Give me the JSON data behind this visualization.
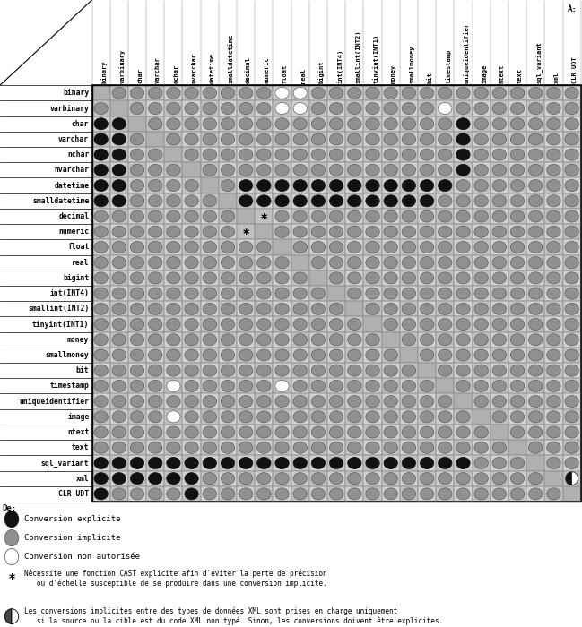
{
  "title_to": "À:",
  "title_from": "De:",
  "col_labels": [
    "binary",
    "varbinary",
    "char",
    "varchar",
    "nchar",
    "nvarchar",
    "datetime",
    "smalldatetime",
    "decimal",
    "numeric",
    "float",
    "real",
    "bigint",
    "int(INT4)",
    "smallint(INT2)",
    "tinyint(INT1)",
    "money",
    "smallmoney",
    "bit",
    "timestamp",
    "uniqueidentifier",
    "image",
    "ntext",
    "text",
    "sql_variant",
    "xml",
    "CLR UDT"
  ],
  "row_labels": [
    "binary",
    "varbinary",
    "char",
    "varchar",
    "nchar",
    "nvarchar",
    "datetime",
    "smalldatetime",
    "decimal",
    "numeric",
    "float",
    "real",
    "bigint",
    "int(INT4)",
    "smallint(INT2)",
    "tinyint(INT1)",
    "money",
    "smallmoney",
    "bit",
    "timestamp",
    "uniqueidentifier",
    "image",
    "ntext",
    "text",
    "sql_variant",
    "xml",
    "CLR UDT"
  ],
  "matrix": [
    [
      "-",
      "G",
      "G",
      "G",
      "G",
      "G",
      "G",
      "G",
      "G",
      "G",
      "W",
      "W",
      "G",
      "G",
      "G",
      "G",
      "G",
      "G",
      "G",
      "G",
      "G",
      "G",
      "G",
      "G",
      "G",
      "G",
      "G"
    ],
    [
      "G",
      "-",
      "G",
      "G",
      "G",
      "G",
      "G",
      "G",
      "G",
      "G",
      "W",
      "W",
      "G",
      "G",
      "G",
      "G",
      "G",
      "G",
      "G",
      "W",
      "G",
      "G",
      "G",
      "G",
      "G",
      "G",
      "G"
    ],
    [
      "B",
      "B",
      "-",
      "G",
      "G",
      "G",
      "G",
      "G",
      "G",
      "G",
      "G",
      "G",
      "G",
      "G",
      "G",
      "G",
      "G",
      "G",
      "G",
      "G",
      "B",
      "G",
      "G",
      "G",
      "G",
      "G",
      "G"
    ],
    [
      "B",
      "B",
      "G",
      "-",
      "G",
      "G",
      "G",
      "G",
      "G",
      "G",
      "G",
      "G",
      "G",
      "G",
      "G",
      "G",
      "G",
      "G",
      "G",
      "G",
      "B",
      "G",
      "G",
      "G",
      "G",
      "G",
      "G"
    ],
    [
      "B",
      "B",
      "G",
      "G",
      "-",
      "G",
      "G",
      "G",
      "G",
      "G",
      "G",
      "G",
      "G",
      "G",
      "G",
      "G",
      "G",
      "G",
      "G",
      "G",
      "B",
      "G",
      "G",
      "G",
      "G",
      "G",
      "G"
    ],
    [
      "B",
      "B",
      "G",
      "G",
      "G",
      "-",
      "G",
      "G",
      "G",
      "G",
      "G",
      "G",
      "G",
      "G",
      "G",
      "G",
      "G",
      "G",
      "G",
      "G",
      "B",
      "G",
      "G",
      "G",
      "G",
      "G",
      "G"
    ],
    [
      "B",
      "B",
      "G",
      "G",
      "G",
      "G",
      "-",
      "G",
      "B",
      "B",
      "B",
      "B",
      "B",
      "B",
      "B",
      "B",
      "B",
      "B",
      "B",
      "B",
      "G",
      "G",
      "G",
      "G",
      "G",
      "G",
      "G"
    ],
    [
      "B",
      "B",
      "G",
      "G",
      "G",
      "G",
      "G",
      "-",
      "B",
      "B",
      "B",
      "B",
      "B",
      "B",
      "B",
      "B",
      "B",
      "B",
      "B",
      "G",
      "G",
      "G",
      "G",
      "G",
      "G",
      "G",
      "G"
    ],
    [
      "G",
      "G",
      "G",
      "G",
      "G",
      "G",
      "G",
      "G",
      "-",
      "T",
      "G",
      "G",
      "G",
      "G",
      "G",
      "G",
      "G",
      "G",
      "G",
      "G",
      "G",
      "G",
      "G",
      "G",
      "G",
      "G",
      "G"
    ],
    [
      "G",
      "G",
      "G",
      "G",
      "G",
      "G",
      "G",
      "G",
      "T",
      "-",
      "G",
      "G",
      "G",
      "G",
      "G",
      "G",
      "G",
      "G",
      "G",
      "G",
      "G",
      "G",
      "G",
      "G",
      "G",
      "G",
      "G"
    ],
    [
      "G",
      "G",
      "G",
      "G",
      "G",
      "G",
      "G",
      "G",
      "G",
      "G",
      "-",
      "G",
      "G",
      "G",
      "G",
      "G",
      "G",
      "G",
      "G",
      "G",
      "G",
      "G",
      "G",
      "G",
      "G",
      "G",
      "G"
    ],
    [
      "G",
      "G",
      "G",
      "G",
      "G",
      "G",
      "G",
      "G",
      "G",
      "G",
      "G",
      "-",
      "G",
      "G",
      "G",
      "G",
      "G",
      "G",
      "G",
      "G",
      "G",
      "G",
      "G",
      "G",
      "G",
      "G",
      "G"
    ],
    [
      "G",
      "G",
      "G",
      "G",
      "G",
      "G",
      "G",
      "G",
      "G",
      "G",
      "G",
      "G",
      "-",
      "G",
      "G",
      "G",
      "G",
      "G",
      "G",
      "G",
      "G",
      "G",
      "G",
      "G",
      "G",
      "G",
      "G"
    ],
    [
      "G",
      "G",
      "G",
      "G",
      "G",
      "G",
      "G",
      "G",
      "G",
      "G",
      "G",
      "G",
      "G",
      "-",
      "G",
      "G",
      "G",
      "G",
      "G",
      "G",
      "G",
      "G",
      "G",
      "G",
      "G",
      "G",
      "G"
    ],
    [
      "G",
      "G",
      "G",
      "G",
      "G",
      "G",
      "G",
      "G",
      "G",
      "G",
      "G",
      "G",
      "G",
      "G",
      "-",
      "G",
      "G",
      "G",
      "G",
      "G",
      "G",
      "G",
      "G",
      "G",
      "G",
      "G",
      "G"
    ],
    [
      "G",
      "G",
      "G",
      "G",
      "G",
      "G",
      "G",
      "G",
      "G",
      "G",
      "G",
      "G",
      "G",
      "G",
      "G",
      "-",
      "G",
      "G",
      "G",
      "G",
      "G",
      "G",
      "G",
      "G",
      "G",
      "G",
      "G"
    ],
    [
      "G",
      "G",
      "G",
      "G",
      "G",
      "G",
      "G",
      "G",
      "G",
      "G",
      "G",
      "G",
      "G",
      "G",
      "G",
      "G",
      "-",
      "G",
      "G",
      "G",
      "G",
      "G",
      "G",
      "G",
      "G",
      "G",
      "G"
    ],
    [
      "G",
      "G",
      "G",
      "G",
      "G",
      "G",
      "G",
      "G",
      "G",
      "G",
      "G",
      "G",
      "G",
      "G",
      "G",
      "G",
      "G",
      "-",
      "G",
      "G",
      "G",
      "G",
      "G",
      "G",
      "G",
      "G",
      "G"
    ],
    [
      "G",
      "G",
      "G",
      "G",
      "G",
      "G",
      "G",
      "G",
      "G",
      "G",
      "G",
      "G",
      "G",
      "G",
      "G",
      "G",
      "G",
      "G",
      "-",
      "G",
      "G",
      "G",
      "G",
      "G",
      "G",
      "G",
      "G"
    ],
    [
      "G",
      "G",
      "G",
      "G",
      "W",
      "G",
      "G",
      "G",
      "G",
      "G",
      "W",
      "G",
      "G",
      "G",
      "G",
      "G",
      "G",
      "G",
      "G",
      "-",
      "G",
      "G",
      "G",
      "G",
      "G",
      "G",
      "G"
    ],
    [
      "G",
      "G",
      "G",
      "G",
      "G",
      "G",
      "G",
      "G",
      "G",
      "G",
      "G",
      "G",
      "G",
      "G",
      "G",
      "G",
      "G",
      "G",
      "G",
      "G",
      "-",
      "G",
      "G",
      "G",
      "G",
      "G",
      "G"
    ],
    [
      "G",
      "G",
      "G",
      "G",
      "W",
      "G",
      "G",
      "G",
      "G",
      "G",
      "G",
      "G",
      "G",
      "G",
      "G",
      "G",
      "G",
      "G",
      "G",
      "G",
      "G",
      "-",
      "G",
      "G",
      "G",
      "G",
      "G"
    ],
    [
      "G",
      "G",
      "G",
      "G",
      "G",
      "G",
      "G",
      "G",
      "G",
      "G",
      "G",
      "G",
      "G",
      "G",
      "G",
      "G",
      "G",
      "G",
      "G",
      "G",
      "G",
      "G",
      "-",
      "G",
      "G",
      "G",
      "G"
    ],
    [
      "G",
      "G",
      "G",
      "G",
      "G",
      "G",
      "G",
      "G",
      "G",
      "G",
      "G",
      "G",
      "G",
      "G",
      "G",
      "G",
      "G",
      "G",
      "G",
      "G",
      "G",
      "G",
      "G",
      "-",
      "G",
      "G",
      "G"
    ],
    [
      "B",
      "B",
      "B",
      "B",
      "B",
      "B",
      "B",
      "B",
      "B",
      "B",
      "B",
      "B",
      "B",
      "B",
      "B",
      "B",
      "B",
      "B",
      "B",
      "B",
      "B",
      "G",
      "G",
      "G",
      "-",
      "G",
      "G"
    ],
    [
      "B",
      "B",
      "B",
      "B",
      "B",
      "B",
      "G",
      "G",
      "G",
      "G",
      "G",
      "G",
      "G",
      "G",
      "G",
      "G",
      "G",
      "G",
      "G",
      "G",
      "G",
      "G",
      "G",
      "G",
      "G",
      "-",
      "H"
    ],
    [
      "B",
      "G",
      "G",
      "G",
      "G",
      "B",
      "G",
      "G",
      "G",
      "G",
      "G",
      "G",
      "G",
      "G",
      "G",
      "G",
      "G",
      "G",
      "G",
      "G",
      "G",
      "G",
      "G",
      "G",
      "G",
      "G",
      "-"
    ]
  ],
  "legend_explicite": "Conversion explicite",
  "legend_implicite": "Conversion implicite",
  "legend_non_autorise": "Conversion non autorisée",
  "legend_star_text": "Nécessite une fonction CAST explicite afin d'éviter la perte de précision\n   ou d'échelle susceptible de se produire dans une conversion implicite.",
  "legend_half_text": "Les conversions implicites entre des types de données XML sont prises en charge uniquement\n   si la source ou la cible est du code XML non typé. Sinon, les conversions doivent être explicites."
}
